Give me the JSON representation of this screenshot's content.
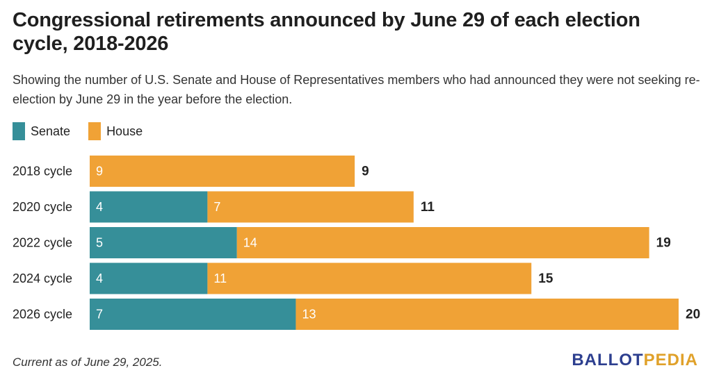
{
  "title": "Congressional retirements announced by June 29 of each election cycle, 2018-2026",
  "subtitle": "Showing the number of U.S. Senate and House of Representatives members who had announced they were not seeking re-election by June 29 in the year before the election.",
  "footer_note": "Current as of June 29, 2025.",
  "logo": {
    "part1": "BALLOT",
    "part2": "PEDIA"
  },
  "colors": {
    "senate": "#368f99",
    "house": "#f0a236"
  },
  "chart_data": {
    "type": "bar",
    "orientation": "horizontal",
    "stacked": true,
    "categories": [
      "2018 cycle",
      "2020 cycle",
      "2022 cycle",
      "2024 cycle",
      "2026 cycle"
    ],
    "series": [
      {
        "name": "Senate",
        "values": [
          0,
          4,
          5,
          4,
          7
        ]
      },
      {
        "name": "House",
        "values": [
          9,
          7,
          14,
          11,
          13
        ]
      }
    ],
    "totals": [
      9,
      11,
      19,
      15,
      20
    ],
    "xlim": [
      0,
      20
    ],
    "grid": false,
    "legend": "top-left"
  }
}
